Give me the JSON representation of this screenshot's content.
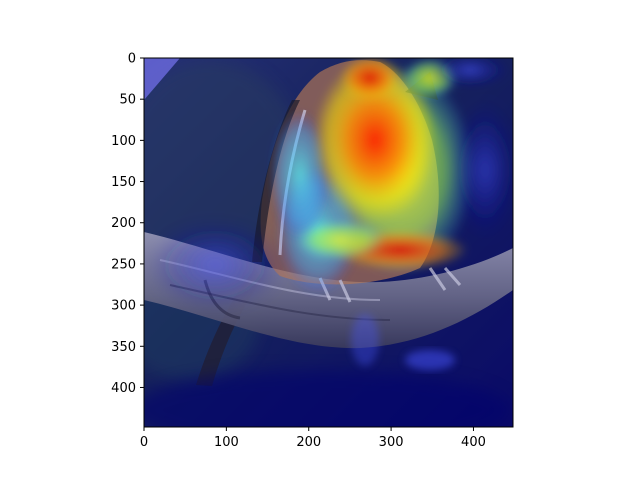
{
  "figure": {
    "background": "#ffffff",
    "image": {
      "subject": "bird perched on a branch with a heatmap overlay",
      "colormap": "jet"
    },
    "x_axis": {
      "range": [
        0,
        448
      ],
      "ticks": [
        {
          "value": 0,
          "label": "0"
        },
        {
          "value": 100,
          "label": "100"
        },
        {
          "value": 200,
          "label": "200"
        },
        {
          "value": 300,
          "label": "300"
        },
        {
          "value": 400,
          "label": "400"
        }
      ]
    },
    "y_axis": {
      "range": [
        0,
        448
      ],
      "inverted": true,
      "ticks": [
        {
          "value": 0,
          "label": "0"
        },
        {
          "value": 50,
          "label": "50"
        },
        {
          "value": 100,
          "label": "100"
        },
        {
          "value": 150,
          "label": "150"
        },
        {
          "value": 200,
          "label": "200"
        },
        {
          "value": 250,
          "label": "250"
        },
        {
          "value": 300,
          "label": "300"
        },
        {
          "value": 350,
          "label": "350"
        },
        {
          "value": 400,
          "label": "400"
        }
      ]
    }
  }
}
